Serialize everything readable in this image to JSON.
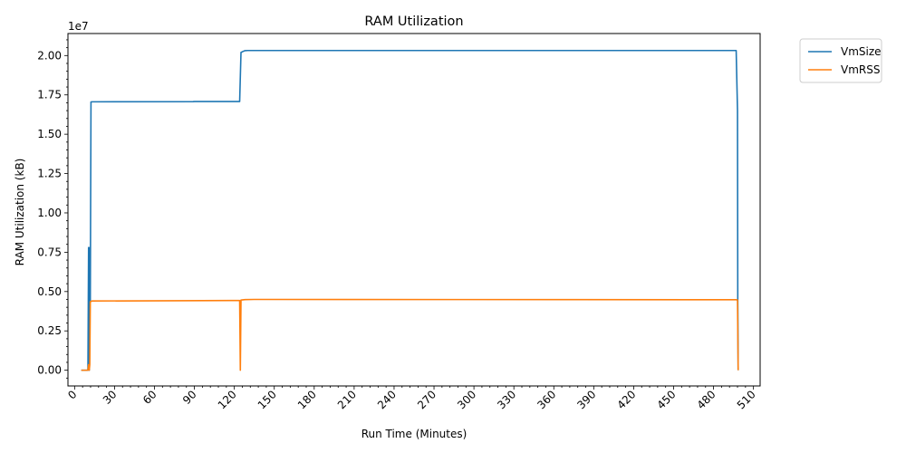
{
  "chart_data": {
    "type": "line",
    "title": "RAM Utilization",
    "xlabel": "Run Time (Minutes)",
    "ylabel": "RAM Utilization (kB)",
    "y_offset_label": "1e7",
    "y_scale": 10000000,
    "xlim": [
      -5,
      515
    ],
    "ylim": [
      -1000000,
      21400000
    ],
    "x_ticks": [
      0,
      30,
      60,
      90,
      120,
      150,
      180,
      210,
      240,
      270,
      300,
      330,
      360,
      390,
      420,
      450,
      480,
      510
    ],
    "x_minor_step": 6,
    "y_ticks": [
      0,
      2500000,
      5000000,
      7500000,
      10000000,
      12500000,
      15000000,
      17500000,
      20000000
    ],
    "y_tick_labels": [
      "0.00",
      "0.25",
      "0.50",
      "0.75",
      "1.00",
      "1.25",
      "1.50",
      "1.75",
      "2.00"
    ],
    "y_minor_step": 500000,
    "grid": false,
    "legend_position": "outside-top-right",
    "series": [
      {
        "name": "VmSize",
        "color": "#1f77b4",
        "points": [
          [
            5,
            0
          ],
          [
            10,
            0
          ],
          [
            10.5,
            7800000
          ],
          [
            11,
            0
          ],
          [
            11.4,
            7800000
          ],
          [
            11.8,
            4400000
          ],
          [
            12.3,
            17050000
          ],
          [
            13,
            17060000
          ],
          [
            89,
            17070000
          ],
          [
            90,
            17080000
          ],
          [
            124,
            17080000
          ],
          [
            125,
            20200000
          ],
          [
            127,
            20280000
          ],
          [
            128,
            20310000
          ],
          [
            130,
            20320000
          ],
          [
            497,
            20320000
          ],
          [
            498,
            16500000
          ],
          [
            498.2,
            4500000
          ],
          [
            498.5,
            0
          ]
        ]
      },
      {
        "name": "VmRSS",
        "color": "#ff7f0e",
        "points": [
          [
            5,
            0
          ],
          [
            10,
            0
          ],
          [
            10.5,
            350000
          ],
          [
            11,
            0
          ],
          [
            11.4,
            350000
          ],
          [
            11.8,
            4350000
          ],
          [
            13,
            4400000
          ],
          [
            124,
            4430000
          ],
          [
            124.5,
            0
          ],
          [
            125,
            4460000
          ],
          [
            128,
            4490000
          ],
          [
            135,
            4500000
          ],
          [
            497,
            4480000
          ],
          [
            498,
            4460000
          ],
          [
            498.5,
            0
          ]
        ]
      }
    ]
  }
}
